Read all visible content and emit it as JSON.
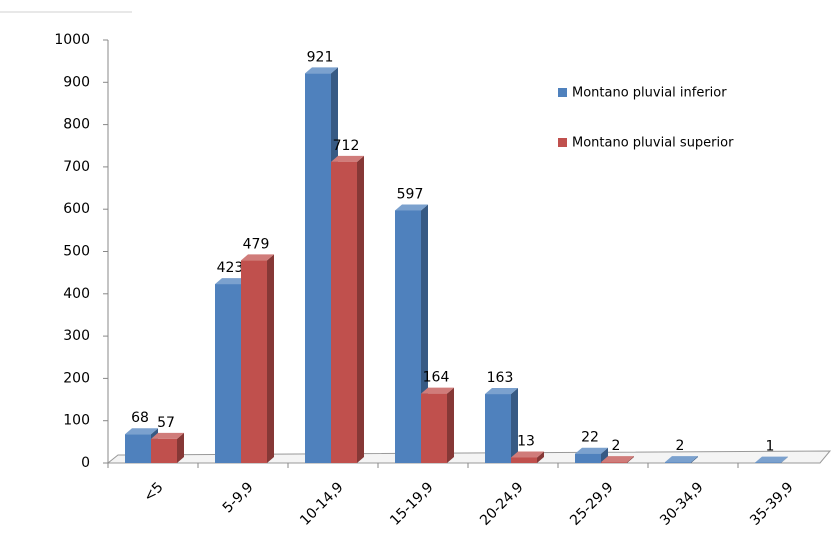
{
  "chart_data": {
    "type": "bar",
    "categories": [
      "<5",
      "5-9,9",
      "10-14,9",
      "15-19,9",
      "20-24,9",
      "25-29,9",
      "30-34,9",
      "35-39,9"
    ],
    "series": [
      {
        "name": "Montano pluvial inferior",
        "color": "#4f81bd",
        "values": [
          68,
          423,
          921,
          597,
          163,
          22,
          2,
          1
        ]
      },
      {
        "name": "Montano pluvial superior",
        "color": "#c0504d",
        "values": [
          57,
          479,
          712,
          164,
          13,
          2,
          null,
          null
        ]
      }
    ],
    "ylim": [
      0,
      1000
    ],
    "yticks": [
      0,
      100,
      200,
      300,
      400,
      500,
      600,
      700,
      800,
      900,
      1000
    ]
  }
}
